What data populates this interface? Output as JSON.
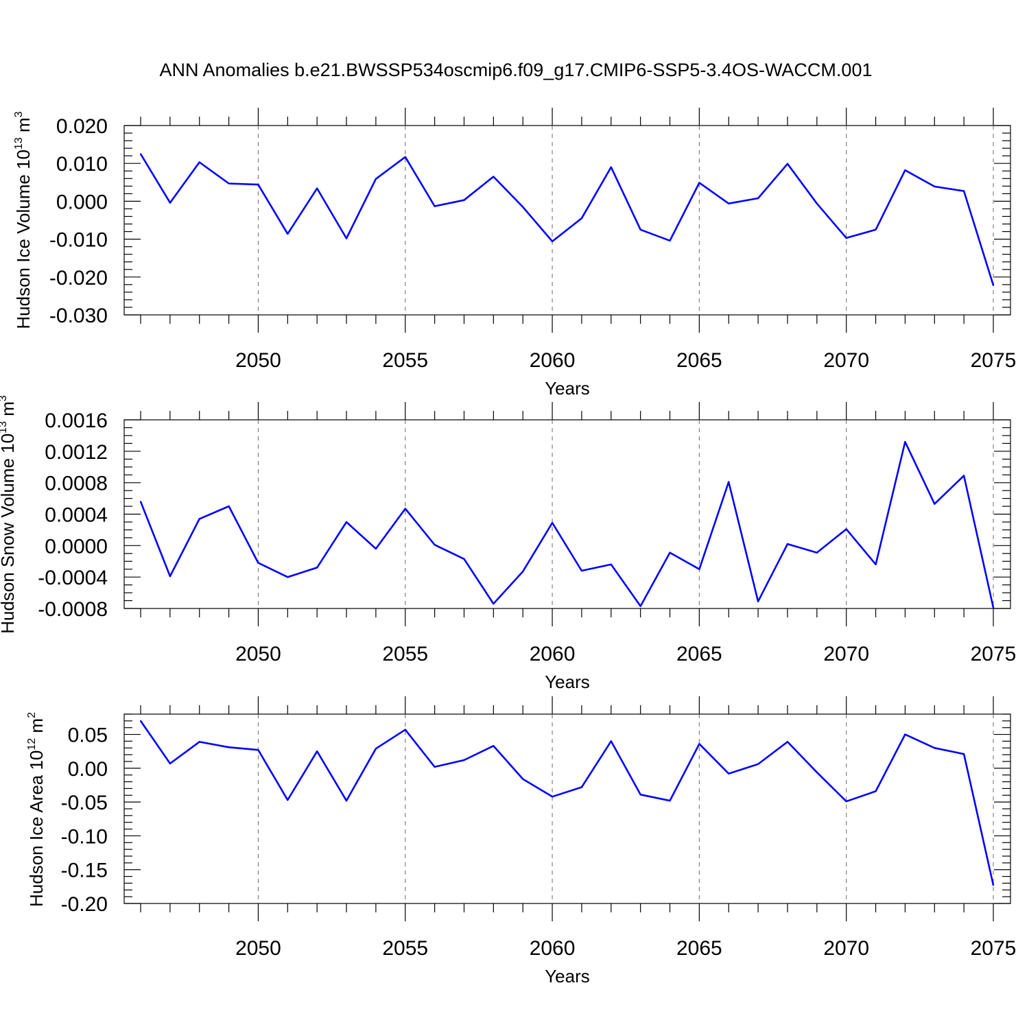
{
  "title": "ANN Anomalies b.e21.BWSSP534oscmip6.f09_g17.CMIP6-SSP5-3.4OS-WACCM.001",
  "colors": {
    "line": "#0000ff",
    "grid": "#777777",
    "axis": "#000000"
  },
  "chart_data": [
    {
      "type": "line",
      "id": "ice-volume",
      "ylabel": {
        "main": "Hudson Ice Volume 10",
        "sup": "13",
        "unit": " m",
        "unit_sup": "3"
      },
      "xlabel": "Years",
      "xlim": [
        2046,
        2075
      ],
      "ylim": [
        -0.03,
        0.02
      ],
      "x_ticks": [
        2050,
        2055,
        2060,
        2065,
        2070,
        2075
      ],
      "x_tick_labels": [
        "2050",
        "2055",
        "2060",
        "2065",
        "2070",
        "2075"
      ],
      "y_ticks": [
        0.02,
        0.01,
        0.0,
        -0.01,
        -0.02,
        -0.03
      ],
      "y_tick_labels": [
        "0.020",
        "0.010",
        "0.000",
        "-0.010",
        "-0.020",
        "-0.030"
      ],
      "y_minor_step": 0.002,
      "grid_x": true,
      "x": [
        2046,
        2047,
        2048,
        2049,
        2050,
        2051,
        2052,
        2053,
        2054,
        2055,
        2056,
        2057,
        2058,
        2059,
        2060,
        2061,
        2062,
        2063,
        2064,
        2065,
        2066,
        2067,
        2068,
        2069,
        2070,
        2071,
        2072,
        2073,
        2074,
        2075
      ],
      "series": [
        {
          "name": "Hudson Ice Volume",
          "values": [
            0.0125,
            -0.0004,
            0.0103,
            0.0047,
            0.0044,
            -0.0086,
            0.0034,
            -0.0098,
            0.0059,
            0.0117,
            -0.0013,
            0.0003,
            0.0065,
            -0.0015,
            -0.0106,
            -0.0045,
            0.009,
            -0.0075,
            -0.0104,
            0.0049,
            -0.0006,
            0.0008,
            0.0099,
            -0.0006,
            -0.0097,
            -0.0075,
            0.0082,
            0.0039,
            0.0027,
            -0.0222
          ]
        }
      ]
    },
    {
      "type": "line",
      "id": "snow-volume",
      "ylabel": {
        "main": "Hudson Snow Volume 10",
        "sup": "13",
        "unit": " m",
        "unit_sup": "3"
      },
      "xlabel": "Years",
      "xlim": [
        2046,
        2075
      ],
      "ylim": [
        -0.0008,
        0.0016
      ],
      "x_ticks": [
        2050,
        2055,
        2060,
        2065,
        2070,
        2075
      ],
      "x_tick_labels": [
        "2050",
        "2055",
        "2060",
        "2065",
        "2070",
        "2075"
      ],
      "y_ticks": [
        0.0016,
        0.0012,
        0.0008,
        0.0004,
        0.0,
        -0.0004,
        -0.0008
      ],
      "y_tick_labels": [
        "0.0016",
        "0.0012",
        "0.0008",
        "0.0004",
        "0.0000",
        "-0.0004",
        "-0.0008"
      ],
      "y_minor_step": 0.0001,
      "grid_x": true,
      "x": [
        2046,
        2047,
        2048,
        2049,
        2050,
        2051,
        2052,
        2053,
        2054,
        2055,
        2056,
        2057,
        2058,
        2059,
        2060,
        2061,
        2062,
        2063,
        2064,
        2065,
        2066,
        2067,
        2068,
        2069,
        2070,
        2071,
        2072,
        2073,
        2074,
        2075
      ],
      "series": [
        {
          "name": "Hudson Snow Volume",
          "values": [
            0.00056,
            -0.00039,
            0.00034,
            0.0005,
            -0.00022,
            -0.0004,
            -0.00028,
            0.0003,
            -4e-05,
            0.00047,
            1e-05,
            -0.00017,
            -0.00074,
            -0.00033,
            0.00029,
            -0.00032,
            -0.00024,
            -0.00077,
            -9e-05,
            -0.0003,
            0.00081,
            -0.00071,
            2e-05,
            -9e-05,
            0.00021,
            -0.00024,
            0.00132,
            0.00053,
            0.00089,
            -0.00079
          ]
        }
      ]
    },
    {
      "type": "line",
      "id": "ice-area",
      "ylabel": {
        "main": "Hudson Ice Area 10",
        "sup": "12",
        "unit": " m",
        "unit_sup": "2"
      },
      "xlabel": "Years",
      "xlim": [
        2046,
        2075
      ],
      "ylim": [
        -0.2,
        0.08
      ],
      "x_ticks": [
        2050,
        2055,
        2060,
        2065,
        2070,
        2075
      ],
      "x_tick_labels": [
        "2050",
        "2055",
        "2060",
        "2065",
        "2070",
        "2075"
      ],
      "y_ticks": [
        0.05,
        0.0,
        -0.05,
        -0.1,
        -0.15,
        -0.2
      ],
      "y_tick_labels": [
        "0.05",
        "0.00",
        "-0.05",
        "-0.10",
        "-0.15",
        "-0.20"
      ],
      "y_minor_step": 0.01,
      "grid_x": true,
      "x": [
        2046,
        2047,
        2048,
        2049,
        2050,
        2051,
        2052,
        2053,
        2054,
        2055,
        2056,
        2057,
        2058,
        2059,
        2060,
        2061,
        2062,
        2063,
        2064,
        2065,
        2066,
        2067,
        2068,
        2069,
        2070,
        2071,
        2072,
        2073,
        2074,
        2075
      ],
      "series": [
        {
          "name": "Hudson Ice Area",
          "values": [
            0.07,
            0.007,
            0.039,
            0.031,
            0.027,
            -0.047,
            0.025,
            -0.048,
            0.029,
            0.057,
            0.002,
            0.012,
            0.033,
            -0.016,
            -0.042,
            -0.028,
            0.04,
            -0.039,
            -0.048,
            0.036,
            -0.008,
            0.006,
            0.039,
            -0.006,
            -0.049,
            -0.034,
            0.05,
            0.03,
            0.021,
            -0.173
          ]
        }
      ]
    }
  ]
}
